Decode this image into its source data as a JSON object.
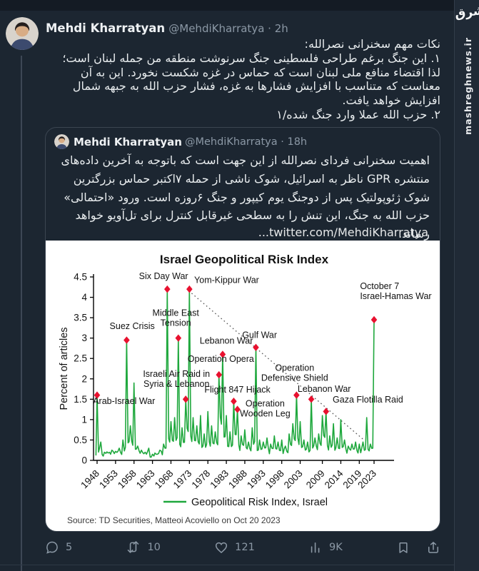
{
  "watermark": {
    "site": "mashreghnews.ir",
    "logo_text": "مشرق"
  },
  "separator": "·",
  "tweet": {
    "author": "Mehdi Kharratyan",
    "handle": "@MehdiKharratya",
    "time": "2h",
    "text": "نکات مهم سخنرانی نصرالله:\n۱. این جنگ برغم طراحی فلسطینی جنگ سرنوشت منطقه من جمله لبنان است؛ لذا اقتضاء منافع ملی لبنان است که حماس در غزه شکست نخورد. این به آن معناست که متناسب با افزایش فشارها به غزه، فشار حزب الله به جبهه شمال افزایش خواهد یافت.\n۲. حزب الله عملا وارد جنگ شده/۱"
  },
  "quote": {
    "author": "Mehdi Kharratyan",
    "handle": "@MehdiKharratya",
    "time": "18h",
    "text": "اهمیت سخنرانی فردای نصرالله از این جهت است که باتوجه به آخرین داده‌های منتشره GPR ناظر به اسرائیل، شوک ناشی از حمله ۷اکتبر حماس بزرگترین شوک ژئوپولتیک پس از دوجنگ یوم کیپور و جنگ ۶روزه است. ورود «احتمالی» حزب الله به جنگ، این تنش را به سطحی غیرقابل کنترل برای تل‌آویو خواهد رساند.",
    "link": "...twitter.com/MehdiKharratya"
  },
  "engagement": {
    "replies": "5",
    "retweets": "10",
    "likes": "121",
    "views": "9K"
  },
  "chart_data": {
    "type": "line",
    "title": "Israel Geopolitical Risk Index",
    "ylabel": "Percent of articles",
    "legend": "Geopolitical Risk Index, Israel",
    "source": "Source: TD Securities, Matteoi Acoviello on Oct 20 2023",
    "ylim": [
      0,
      4.5
    ],
    "ytick_step": 0.5,
    "xticks": [
      1948,
      1953,
      1958,
      1963,
      1968,
      1973,
      1978,
      1983,
      1988,
      1993,
      1998,
      2003,
      2009,
      2014,
      2019,
      2023
    ],
    "grid": false,
    "legend_position": "bottom",
    "line_color": "#1fa83d",
    "marker_color": "#e8112f",
    "years_range": [
      1948,
      2023
    ],
    "interval": 1,
    "values": [
      1.6,
      0.45,
      0.2,
      0.18,
      0.25,
      0.22,
      0.3,
      0.5,
      2.95,
      0.85,
      1.9,
      0.35,
      0.25,
      0.2,
      0.3,
      0.15,
      0.15,
      0.25,
      0.4,
      4.2,
      0.95,
      1.05,
      3.0,
      0.8,
      1.5,
      4.2,
      1.05,
      0.85,
      1.1,
      0.65,
      1.2,
      0.85,
      0.7,
      2.1,
      2.6,
      1.1,
      0.7,
      1.45,
      1.25,
      0.6,
      0.75,
      0.45,
      0.8,
      2.77,
      0.5,
      0.45,
      0.55,
      0.4,
      0.6,
      0.45,
      0.5,
      0.35,
      0.65,
      0.9,
      1.6,
      0.95,
      0.5,
      0.45,
      1.5,
      0.55,
      0.65,
      1.1,
      1.2,
      0.6,
      0.9,
      0.55,
      1.0,
      0.5,
      0.35,
      0.4,
      0.45,
      0.4,
      0.45,
      1.05,
      0.4,
      3.45
    ],
    "events": [
      {
        "year": 1948,
        "value": 1.6,
        "label": "Arab-Israel War"
      },
      {
        "year": 1956,
        "value": 2.95,
        "label": "Suez Crisis"
      },
      {
        "year": 1967,
        "value": 4.2,
        "label": "Six Day War"
      },
      {
        "year": 1970,
        "value": 3.0,
        "label": "Middle East Tension"
      },
      {
        "year": 1972,
        "value": 1.5,
        "label": "Israeli Air Raid in Syria & Lebanon"
      },
      {
        "year": 1973,
        "value": 4.2,
        "label": "Yom-Kippur War"
      },
      {
        "year": 1981,
        "value": 2.1,
        "label": "Operation Opera"
      },
      {
        "year": 1982,
        "value": 2.6,
        "label": "Lebanon War"
      },
      {
        "year": 1985,
        "value": 1.45,
        "label": "Flight 847 Hijack"
      },
      {
        "year": 1986,
        "value": 1.25,
        "label": "Operation Wooden Leg"
      },
      {
        "year": 1991,
        "value": 2.77,
        "label": "Gulf War"
      },
      {
        "year": 2002,
        "value": 1.6,
        "label": "Operation Defensive Shield"
      },
      {
        "year": 2006,
        "value": 1.5,
        "label": "Lebanon War"
      },
      {
        "year": 2010,
        "value": 1.2,
        "label": "Gaza Flotilla Raid"
      },
      {
        "year": 2023,
        "value": 3.45,
        "label": "October 7 Israel-Hamas War"
      }
    ],
    "annotations": [
      {
        "text": [
          "Arab-Israel War"
        ],
        "year": 1955.3,
        "value": 1.38,
        "anchor": "middle"
      },
      {
        "text": [
          "Suez Crisis"
        ],
        "year": 1957.5,
        "value": 3.22,
        "anchor": "middle"
      },
      {
        "text": [
          "Six Day War"
        ],
        "year": 1966,
        "value": 4.45,
        "anchor": "middle"
      },
      {
        "text": [
          "Middle East",
          "Tension"
        ],
        "year": 1969.3,
        "value": 3.55,
        "anchor": "middle"
      },
      {
        "text": [
          "Yom-Kippur War"
        ],
        "year": 1974.3,
        "value": 4.35,
        "anchor": "start"
      },
      {
        "text": [
          "Israeli Air Raid in",
          "Syria & Lebanon"
        ],
        "year": 1969.5,
        "value": 2.05,
        "anchor": "middle"
      },
      {
        "text": [
          "Operation Opera"
        ],
        "year": 1981.5,
        "value": 2.42,
        "anchor": "middle"
      },
      {
        "text": [
          "Lebanon War"
        ],
        "year": 1983,
        "value": 2.86,
        "anchor": "middle"
      },
      {
        "text": [
          "Flight 847 Hijack"
        ],
        "year": 1986,
        "value": 1.66,
        "anchor": "middle"
      },
      {
        "text": [
          "Operation",
          "Wooden Leg"
        ],
        "year": 1993.5,
        "value": 1.32,
        "anchor": "middle"
      },
      {
        "text": [
          "Gulf War"
        ],
        "year": 1992,
        "value": 3.0,
        "anchor": "middle"
      },
      {
        "text": [
          "Operation",
          "Defensive Shield"
        ],
        "year": 2001.5,
        "value": 2.2,
        "anchor": "middle"
      },
      {
        "text": [
          "Lebanon War"
        ],
        "year": 2009.5,
        "value": 1.68,
        "anchor": "middle"
      },
      {
        "text": [
          "Gaza Flotilla Raid"
        ],
        "year": 2011.8,
        "value": 1.42,
        "anchor": "start"
      },
      {
        "text": [
          "October 7",
          "Israel-Hamas War"
        ],
        "year": 2019.2,
        "value": 4.2,
        "anchor": "start"
      }
    ],
    "trendline": {
      "from": [
        1973.6,
        4.1
      ],
      "to": [
        2020,
        0.52
      ],
      "style": "dotted"
    }
  }
}
